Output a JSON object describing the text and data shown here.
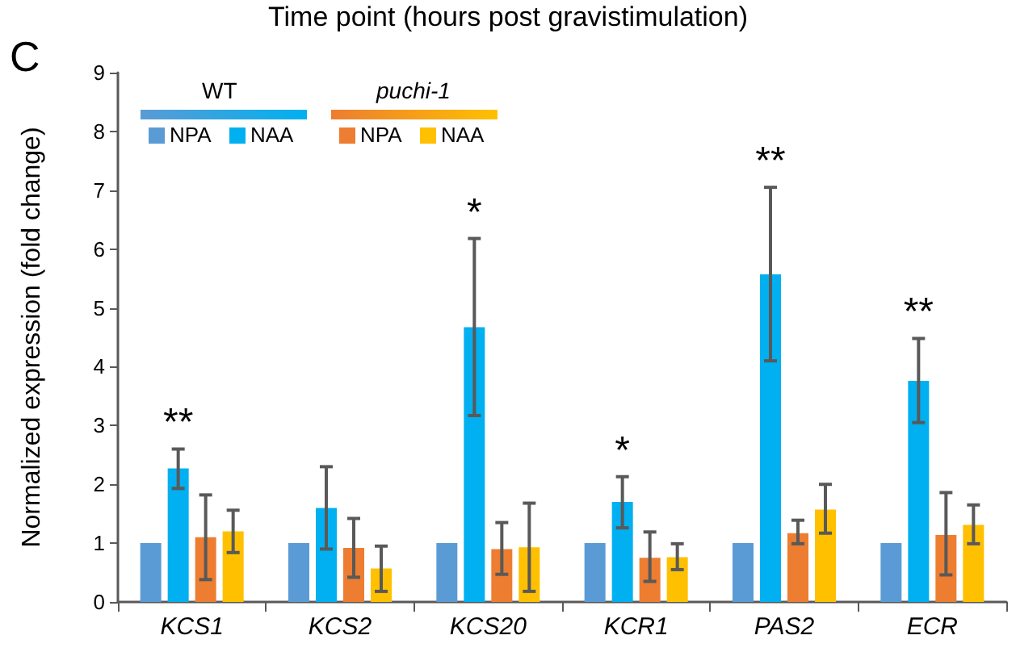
{
  "chart_data": {
    "type": "bar",
    "ylabel": "Normalized expression (fold change)",
    "annotations": [
      "Time point (hours post gravistimulation)",
      "C",
      "WT",
      "puchi-1"
    ],
    "categories": [
      "KCS1",
      "KCS2",
      "KCS20",
      "KCR1",
      "PAS2",
      "ECR"
    ],
    "series": [
      {
        "name": "NPA",
        "color": "#5b9bd5",
        "values": [
          1,
          1,
          1,
          1,
          1,
          1
        ]
      },
      {
        "name": "NAA",
        "color": "#00b0f0",
        "values": [
          2.27,
          1.6,
          4.67,
          1.7,
          5.57,
          3.76
        ],
        "errors": [
          [
            1.93,
            2.6
          ],
          [
            0.9,
            2.3
          ],
          [
            3.17,
            6.18
          ],
          [
            1.26,
            2.13
          ],
          [
            4.1,
            7.05
          ],
          [
            3.05,
            4.48
          ]
        ],
        "value_labels": [
          "**",
          null,
          "*",
          "*",
          "**",
          "**"
        ]
      },
      {
        "name": "NPA",
        "color": "#ed7d31",
        "values": [
          1.1,
          0.92,
          0.9,
          0.75,
          1.17,
          1.14
        ],
        "errors": [
          [
            0.38,
            1.82
          ],
          [
            0.42,
            1.42
          ],
          [
            0.47,
            1.35
          ],
          [
            0.35,
            1.19
          ],
          [
            0.99,
            1.39
          ],
          [
            0.46,
            1.86
          ]
        ]
      },
      {
        "name": "NAA",
        "color": "#ffc000",
        "values": [
          1.2,
          0.57,
          0.93,
          0.76,
          1.57,
          1.31
        ],
        "errors": [
          [
            0.84,
            1.56
          ],
          [
            0.18,
            0.95
          ],
          [
            0.18,
            1.68
          ],
          [
            0.55,
            0.99
          ],
          [
            1.17,
            2.0
          ],
          [
            0.99,
            1.65
          ]
        ]
      }
    ],
    "ylim": [
      0,
      9
    ],
    "yticks": [
      0,
      1,
      2,
      3,
      4,
      5,
      6,
      7,
      8,
      9
    ],
    "grid": false,
    "legend": "top left"
  }
}
